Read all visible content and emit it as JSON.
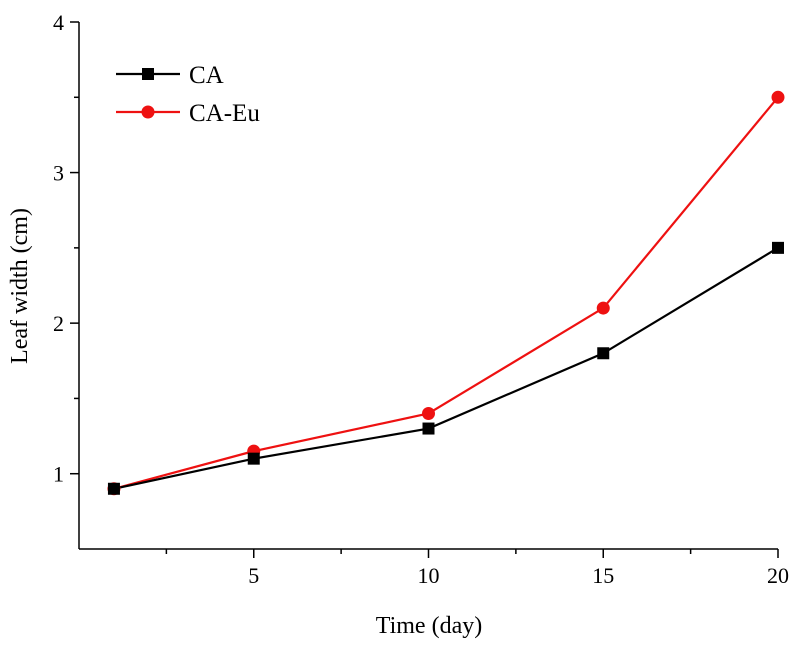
{
  "chart_data": {
    "type": "line",
    "title": "",
    "xlabel": "Time (day)",
    "ylabel": "Leaf width (cm)",
    "xlim": [
      0,
      20
    ],
    "ylim": [
      0.5,
      4
    ],
    "x_ticks": [
      5,
      10,
      15,
      20
    ],
    "x_minor_ticks": [
      2.5,
      7.5,
      12.5,
      17.5
    ],
    "y_ticks": [
      1,
      2,
      3,
      4
    ],
    "y_minor_ticks": [
      1.5,
      2.5,
      3.5
    ],
    "grid": false,
    "legend_position": "top-left",
    "series": [
      {
        "name": "CA",
        "color": "#000000",
        "marker": "square",
        "x": [
          1,
          5,
          10,
          15,
          20
        ],
        "y": [
          0.9,
          1.1,
          1.3,
          1.8,
          2.5
        ]
      },
      {
        "name": "CA-Eu",
        "color": "#ee1111",
        "marker": "circle",
        "x": [
          1,
          5,
          10,
          15,
          20
        ],
        "y": [
          0.9,
          1.15,
          1.4,
          2.1,
          3.5
        ]
      }
    ]
  }
}
